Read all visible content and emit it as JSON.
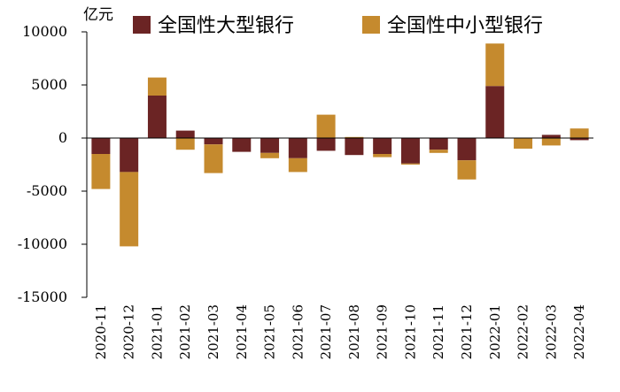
{
  "chart_data": {
    "type": "bar",
    "stacked": true,
    "unit_label": "亿元",
    "categories": [
      "2020-11",
      "2020-12",
      "2021-01",
      "2021-02",
      "2021-03",
      "2021-04",
      "2021-05",
      "2021-06",
      "2021-07",
      "2021-08",
      "2021-09",
      "2021-10",
      "2021-11",
      "2021-12",
      "2022-01",
      "2022-02",
      "2022-03",
      "2022-04"
    ],
    "series": [
      {
        "name": "全国性大型银行",
        "color": "#6b2424",
        "values": [
          -1500,
          -3200,
          4000,
          700,
          -600,
          -1300,
          -1400,
          -1900,
          -1200,
          -1600,
          -1500,
          -2400,
          -1100,
          -2100,
          4900,
          0,
          300,
          -200
        ]
      },
      {
        "name": "全国性中小型银行",
        "color": "#c58a2e",
        "values": [
          -3300,
          -7000,
          1700,
          -1100,
          -2700,
          0,
          -500,
          -1300,
          2200,
          100,
          -300,
          -100,
          -300,
          -1800,
          4000,
          -1000,
          -700,
          900
        ]
      }
    ],
    "ylim": [
      -15000,
      10000
    ],
    "yticks": [
      10000,
      5000,
      0,
      -5000,
      -10000,
      -15000
    ],
    "legend": "top"
  }
}
